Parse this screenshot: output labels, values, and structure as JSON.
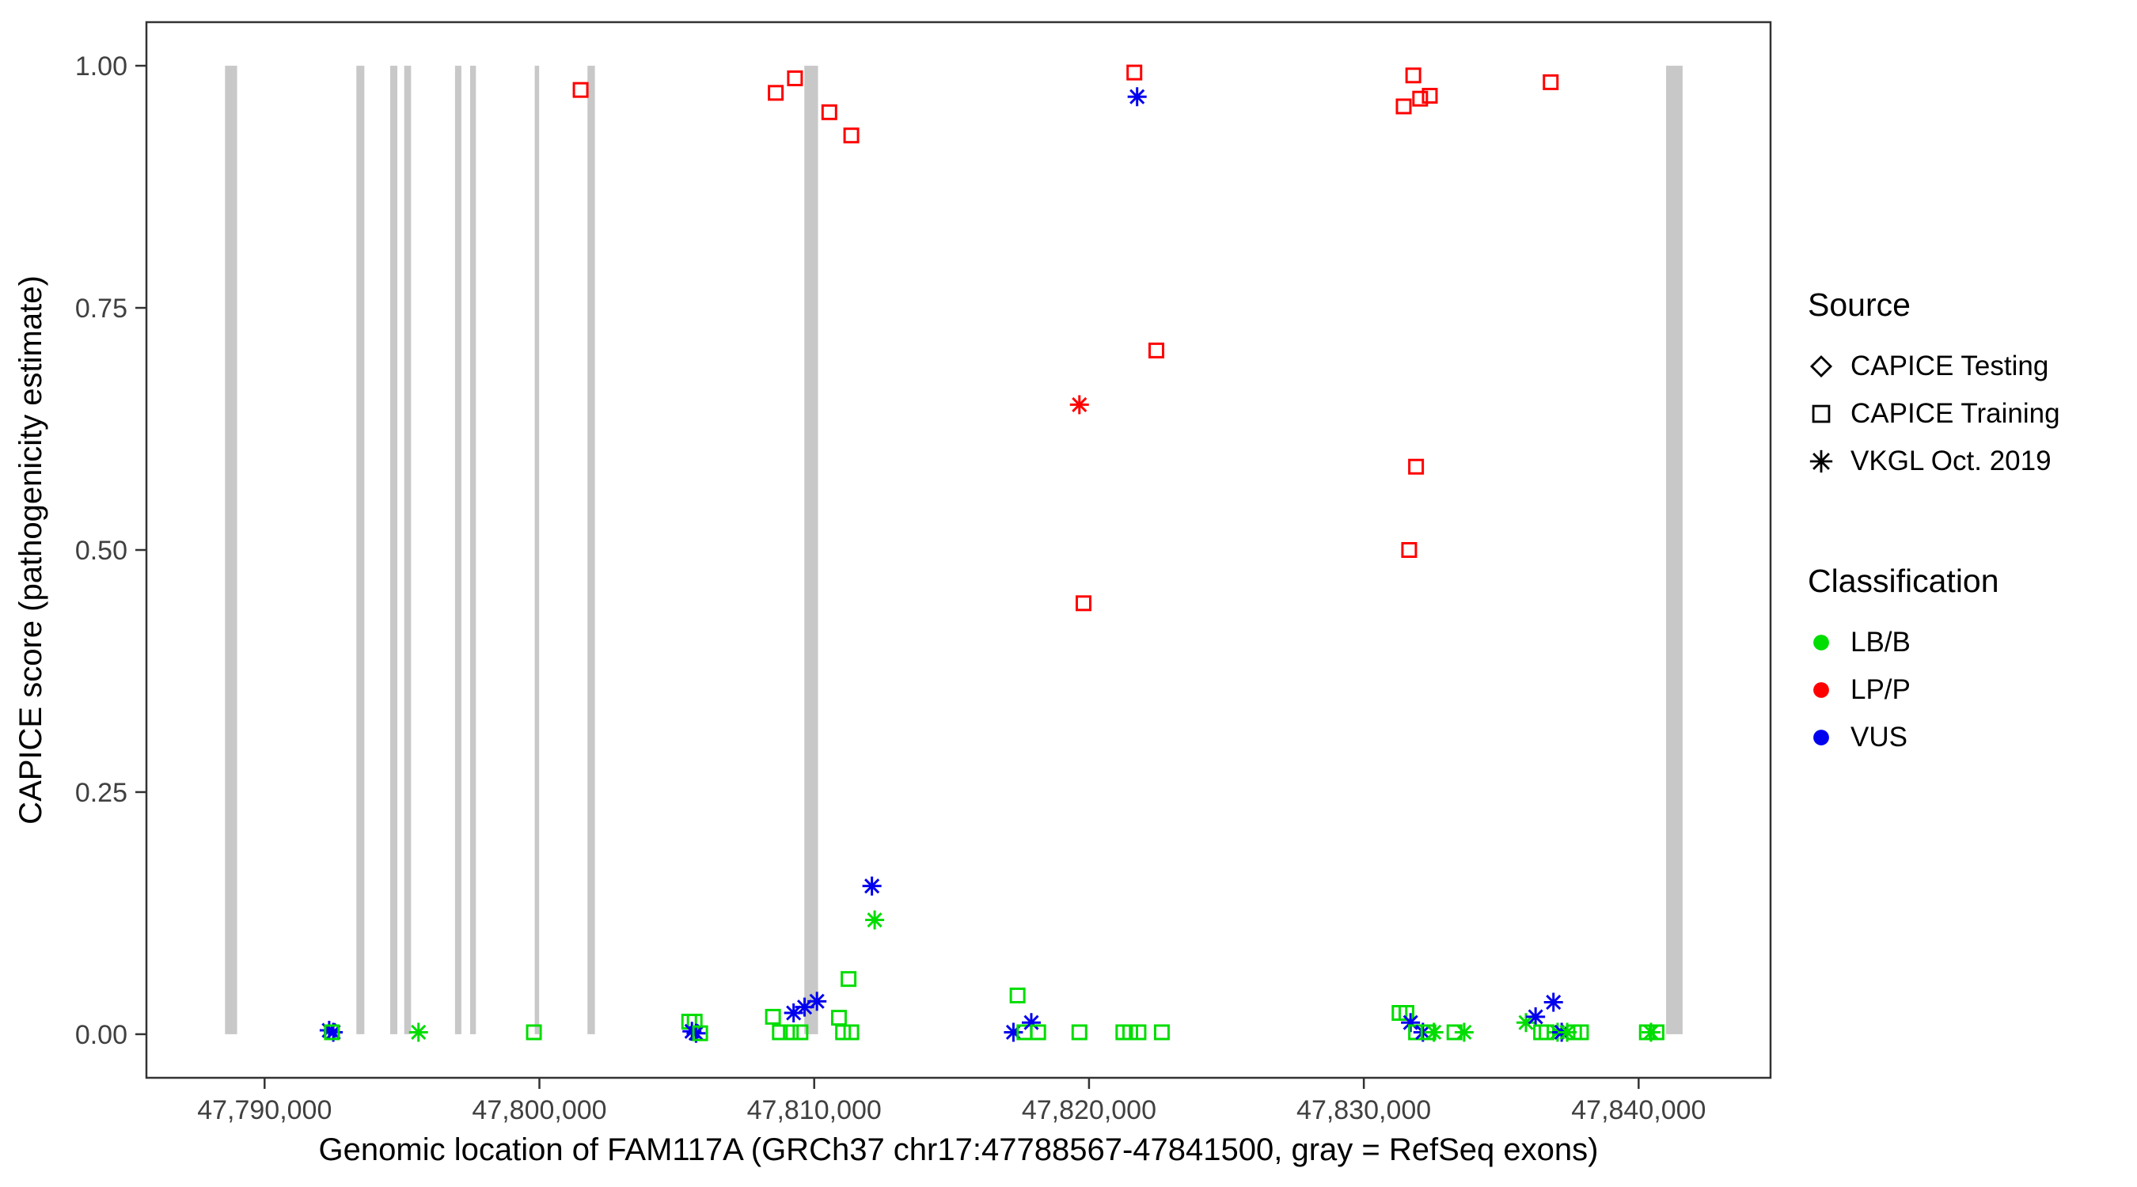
{
  "figure": {
    "background": "#FFFFFF",
    "panel_border_color": "#333333",
    "tick_label_color": "#404040",
    "axis_label_color": "#000000"
  },
  "legend": {
    "source": {
      "title": "Source",
      "items": [
        {
          "label": "CAPICE Testing",
          "shape": "diamond"
        },
        {
          "label": "CAPICE Training",
          "shape": "square"
        },
        {
          "label": "VKGL Oct. 2019",
          "shape": "asterisk"
        }
      ]
    },
    "classification": {
      "title": "Classification",
      "items": [
        {
          "label": "LB/B",
          "color": "#00DD00"
        },
        {
          "label": "LP/P",
          "color": "#FF0000"
        },
        {
          "label": "VUS",
          "color": "#0000EE"
        }
      ]
    }
  },
  "chart_data": {
    "type": "scatter",
    "title": "",
    "xlabel": "Genomic location of FAM117A (GRCh37 chr17:47788567-47841500, gray = RefSeq exons)",
    "ylabel": "CAPICE score (pathogenicity estimate)",
    "xlim": [
      47785700,
      47844800
    ],
    "ylim": [
      -0.045,
      1.045
    ],
    "grid": "off",
    "legend_position": "right",
    "x_ticks": {
      "values": [
        47790000,
        47800000,
        47810000,
        47820000,
        47830000,
        47840000
      ],
      "labels": [
        "47,790,000",
        "47,800,000",
        "47,810,000",
        "47,820,000",
        "47,830,000",
        "47,840,000"
      ]
    },
    "y_ticks": {
      "values": [
        0.0,
        0.25,
        0.5,
        0.75,
        1.0
      ],
      "labels": [
        "0.00",
        "0.25",
        "0.50",
        "0.75",
        "1.00"
      ]
    },
    "exon_color": "#C8C8C8",
    "exons": [
      [
        47788560,
        47789000
      ],
      [
        47793340,
        47793630
      ],
      [
        47794570,
        47794830
      ],
      [
        47795080,
        47795330
      ],
      [
        47796930,
        47797160
      ],
      [
        47797480,
        47797690
      ],
      [
        47799830,
        47799990
      ],
      [
        47801750,
        47802020
      ],
      [
        47809640,
        47810140
      ],
      [
        47841000,
        47841600
      ]
    ],
    "class_colors": {
      "LB/B": "#00DD00",
      "LP/P": "#FF0000",
      "VUS": "#0000EE"
    },
    "source_shapes": {
      "CAPICE Testing": "diamond",
      "CAPICE Training": "square",
      "VKGL Oct. 2019": "asterisk"
    },
    "points": [
      {
        "x": 47801500,
        "y": 0.975,
        "source": "CAPICE Training",
        "class": "LP/P"
      },
      {
        "x": 47808600,
        "y": 0.972,
        "source": "CAPICE Training",
        "class": "LP/P"
      },
      {
        "x": 47809300,
        "y": 0.987,
        "source": "CAPICE Training",
        "class": "LP/P"
      },
      {
        "x": 47810550,
        "y": 0.952,
        "source": "CAPICE Training",
        "class": "LP/P"
      },
      {
        "x": 47811350,
        "y": 0.928,
        "source": "CAPICE Training",
        "class": "LP/P"
      },
      {
        "x": 47821650,
        "y": 0.993,
        "source": "CAPICE Training",
        "class": "LP/P"
      },
      {
        "x": 47822450,
        "y": 0.706,
        "source": "CAPICE Training",
        "class": "LP/P"
      },
      {
        "x": 47819800,
        "y": 0.445,
        "source": "CAPICE Training",
        "class": "LP/P"
      },
      {
        "x": 47831450,
        "y": 0.958,
        "source": "CAPICE Training",
        "class": "LP/P"
      },
      {
        "x": 47831800,
        "y": 0.99,
        "source": "CAPICE Training",
        "class": "LP/P"
      },
      {
        "x": 47832050,
        "y": 0.966,
        "source": "CAPICE Training",
        "class": "LP/P"
      },
      {
        "x": 47832400,
        "y": 0.969,
        "source": "CAPICE Training",
        "class": "LP/P"
      },
      {
        "x": 47831900,
        "y": 0.586,
        "source": "CAPICE Training",
        "class": "LP/P"
      },
      {
        "x": 47831650,
        "y": 0.5,
        "source": "CAPICE Training",
        "class": "LP/P"
      },
      {
        "x": 47836800,
        "y": 0.983,
        "source": "CAPICE Training",
        "class": "LP/P"
      },
      {
        "x": 47819650,
        "y": 0.65,
        "source": "VKGL Oct. 2019",
        "class": "LP/P"
      },
      {
        "x": 47821750,
        "y": 0.968,
        "source": "VKGL Oct. 2019",
        "class": "VUS"
      },
      {
        "x": 47812100,
        "y": 0.153,
        "source": "VKGL Oct. 2019",
        "class": "VUS"
      },
      {
        "x": 47812200,
        "y": 0.118,
        "source": "VKGL Oct. 2019",
        "class": "LB/B"
      },
      {
        "x": 47792350,
        "y": 0.004,
        "source": "VKGL Oct. 2019",
        "class": "VUS"
      },
      {
        "x": 47792500,
        "y": 0.002,
        "source": "VKGL Oct. 2019",
        "class": "VUS"
      },
      {
        "x": 47792450,
        "y": 0.002,
        "source": "CAPICE Training",
        "class": "LB/B"
      },
      {
        "x": 47795600,
        "y": 0.002,
        "source": "VKGL Oct. 2019",
        "class": "LB/B"
      },
      {
        "x": 47799800,
        "y": 0.002,
        "source": "CAPICE Training",
        "class": "LB/B"
      },
      {
        "x": 47805450,
        "y": 0.013,
        "source": "CAPICE Training",
        "class": "LB/B"
      },
      {
        "x": 47805650,
        "y": 0.013,
        "source": "CAPICE Training",
        "class": "LB/B"
      },
      {
        "x": 47805550,
        "y": 0.003,
        "source": "VKGL Oct. 2019",
        "class": "VUS"
      },
      {
        "x": 47805700,
        "y": 0.001,
        "source": "VKGL Oct. 2019",
        "class": "VUS"
      },
      {
        "x": 47805850,
        "y": 0.001,
        "source": "CAPICE Training",
        "class": "LB/B"
      },
      {
        "x": 47808500,
        "y": 0.018,
        "source": "CAPICE Training",
        "class": "LB/B"
      },
      {
        "x": 47808750,
        "y": 0.002,
        "source": "CAPICE Training",
        "class": "LB/B"
      },
      {
        "x": 47809150,
        "y": 0.002,
        "source": "CAPICE Training",
        "class": "LB/B"
      },
      {
        "x": 47809500,
        "y": 0.002,
        "source": "CAPICE Training",
        "class": "LB/B"
      },
      {
        "x": 47809250,
        "y": 0.022,
        "source": "VKGL Oct. 2019",
        "class": "VUS"
      },
      {
        "x": 47809650,
        "y": 0.028,
        "source": "VKGL Oct. 2019",
        "class": "VUS"
      },
      {
        "x": 47810100,
        "y": 0.034,
        "source": "VKGL Oct. 2019",
        "class": "VUS"
      },
      {
        "x": 47810900,
        "y": 0.017,
        "source": "CAPICE Training",
        "class": "LB/B"
      },
      {
        "x": 47811050,
        "y": 0.002,
        "source": "CAPICE Training",
        "class": "LB/B"
      },
      {
        "x": 47811350,
        "y": 0.002,
        "source": "CAPICE Training",
        "class": "LB/B"
      },
      {
        "x": 47811250,
        "y": 0.057,
        "source": "CAPICE Training",
        "class": "LB/B"
      },
      {
        "x": 47817400,
        "y": 0.04,
        "source": "CAPICE Training",
        "class": "LB/B"
      },
      {
        "x": 47817250,
        "y": 0.002,
        "source": "VKGL Oct. 2019",
        "class": "VUS"
      },
      {
        "x": 47817650,
        "y": 0.002,
        "source": "CAPICE Training",
        "class": "LB/B"
      },
      {
        "x": 47817900,
        "y": 0.012,
        "source": "VKGL Oct. 2019",
        "class": "VUS"
      },
      {
        "x": 47818150,
        "y": 0.002,
        "source": "CAPICE Training",
        "class": "LB/B"
      },
      {
        "x": 47819650,
        "y": 0.002,
        "source": "CAPICE Training",
        "class": "LB/B"
      },
      {
        "x": 47821250,
        "y": 0.002,
        "source": "CAPICE Training",
        "class": "LB/B"
      },
      {
        "x": 47821500,
        "y": 0.002,
        "source": "CAPICE Training",
        "class": "LB/B"
      },
      {
        "x": 47821800,
        "y": 0.002,
        "source": "CAPICE Training",
        "class": "LB/B"
      },
      {
        "x": 47822650,
        "y": 0.002,
        "source": "CAPICE Training",
        "class": "LB/B"
      },
      {
        "x": 47831300,
        "y": 0.022,
        "source": "CAPICE Training",
        "class": "LB/B"
      },
      {
        "x": 47831550,
        "y": 0.022,
        "source": "CAPICE Training",
        "class": "LB/B"
      },
      {
        "x": 47831700,
        "y": 0.012,
        "source": "VKGL Oct. 2019",
        "class": "VUS"
      },
      {
        "x": 47831900,
        "y": 0.002,
        "source": "CAPICE Training",
        "class": "LB/B"
      },
      {
        "x": 47832150,
        "y": 0.002,
        "source": "VKGL Oct. 2019",
        "class": "VUS"
      },
      {
        "x": 47832350,
        "y": 0.002,
        "source": "CAPICE Training",
        "class": "LB/B"
      },
      {
        "x": 47832550,
        "y": 0.002,
        "source": "VKGL Oct. 2019",
        "class": "LB/B"
      },
      {
        "x": 47833300,
        "y": 0.002,
        "source": "CAPICE Training",
        "class": "LB/B"
      },
      {
        "x": 47833650,
        "y": 0.002,
        "source": "VKGL Oct. 2019",
        "class": "LB/B"
      },
      {
        "x": 47835900,
        "y": 0.012,
        "source": "VKGL Oct. 2019",
        "class": "LB/B"
      },
      {
        "x": 47836250,
        "y": 0.018,
        "source": "VKGL Oct. 2019",
        "class": "VUS"
      },
      {
        "x": 47836450,
        "y": 0.002,
        "source": "CAPICE Training",
        "class": "LB/B"
      },
      {
        "x": 47836650,
        "y": 0.002,
        "source": "CAPICE Training",
        "class": "LB/B"
      },
      {
        "x": 47836900,
        "y": 0.033,
        "source": "VKGL Oct. 2019",
        "class": "VUS"
      },
      {
        "x": 47837050,
        "y": 0.002,
        "source": "VKGL Oct. 2019",
        "class": "LB/B"
      },
      {
        "x": 47837200,
        "y": 0.002,
        "source": "VKGL Oct. 2019",
        "class": "VUS"
      },
      {
        "x": 47837400,
        "y": 0.002,
        "source": "VKGL Oct. 2019",
        "class": "LB/B"
      },
      {
        "x": 47837650,
        "y": 0.002,
        "source": "CAPICE Training",
        "class": "LB/B"
      },
      {
        "x": 47837900,
        "y": 0.002,
        "source": "CAPICE Training",
        "class": "LB/B"
      },
      {
        "x": 47840300,
        "y": 0.002,
        "source": "CAPICE Training",
        "class": "LB/B"
      },
      {
        "x": 47840450,
        "y": 0.002,
        "source": "VKGL Oct. 2019",
        "class": "LB/B"
      },
      {
        "x": 47840650,
        "y": 0.002,
        "source": "CAPICE Training",
        "class": "LB/B"
      }
    ]
  }
}
